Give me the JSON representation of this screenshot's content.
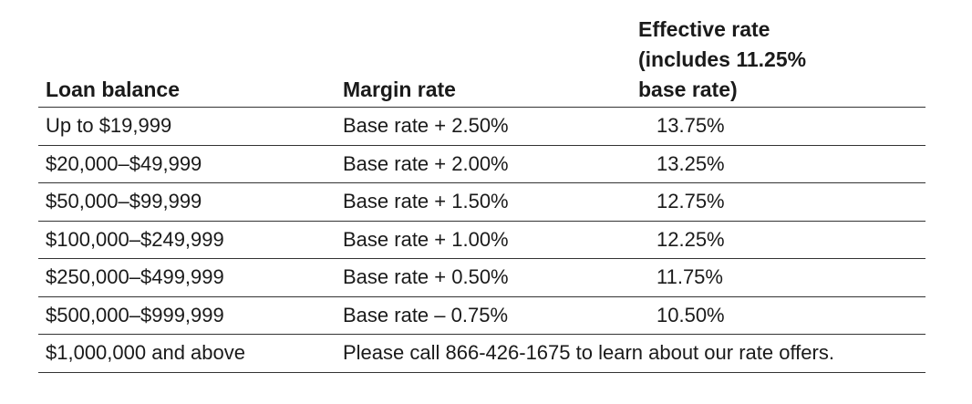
{
  "table": {
    "headers": {
      "loan_balance": "Loan balance",
      "margin_rate": "Margin rate",
      "effective_rate_line1": "Effective rate",
      "effective_rate_line2": "(includes 11.25%",
      "effective_rate_line3": "base rate)"
    },
    "rows": [
      {
        "loan_balance": "Up to $19,999",
        "margin_rate": "Base rate + 2.50%",
        "effective_rate": "13.75%"
      },
      {
        "loan_balance": "$20,000–$49,999",
        "margin_rate": "Base rate + 2.00%",
        "effective_rate": "13.25%"
      },
      {
        "loan_balance": "$50,000–$99,999",
        "margin_rate": "Base rate + 1.50%",
        "effective_rate": "12.75%"
      },
      {
        "loan_balance": "$100,000–$249,999",
        "margin_rate": "Base rate + 1.00%",
        "effective_rate": "12.25%"
      },
      {
        "loan_balance": "$250,000–$499,999",
        "margin_rate": "Base rate + 0.50%",
        "effective_rate": "11.75%"
      },
      {
        "loan_balance": "$500,000–$999,999",
        "margin_rate": "Base rate – 0.75%",
        "effective_rate": "10.50%"
      }
    ],
    "last_row": {
      "loan_balance": "$1,000,000 and above",
      "note": "Please call 866-426-1675 to learn about our rate offers."
    }
  }
}
